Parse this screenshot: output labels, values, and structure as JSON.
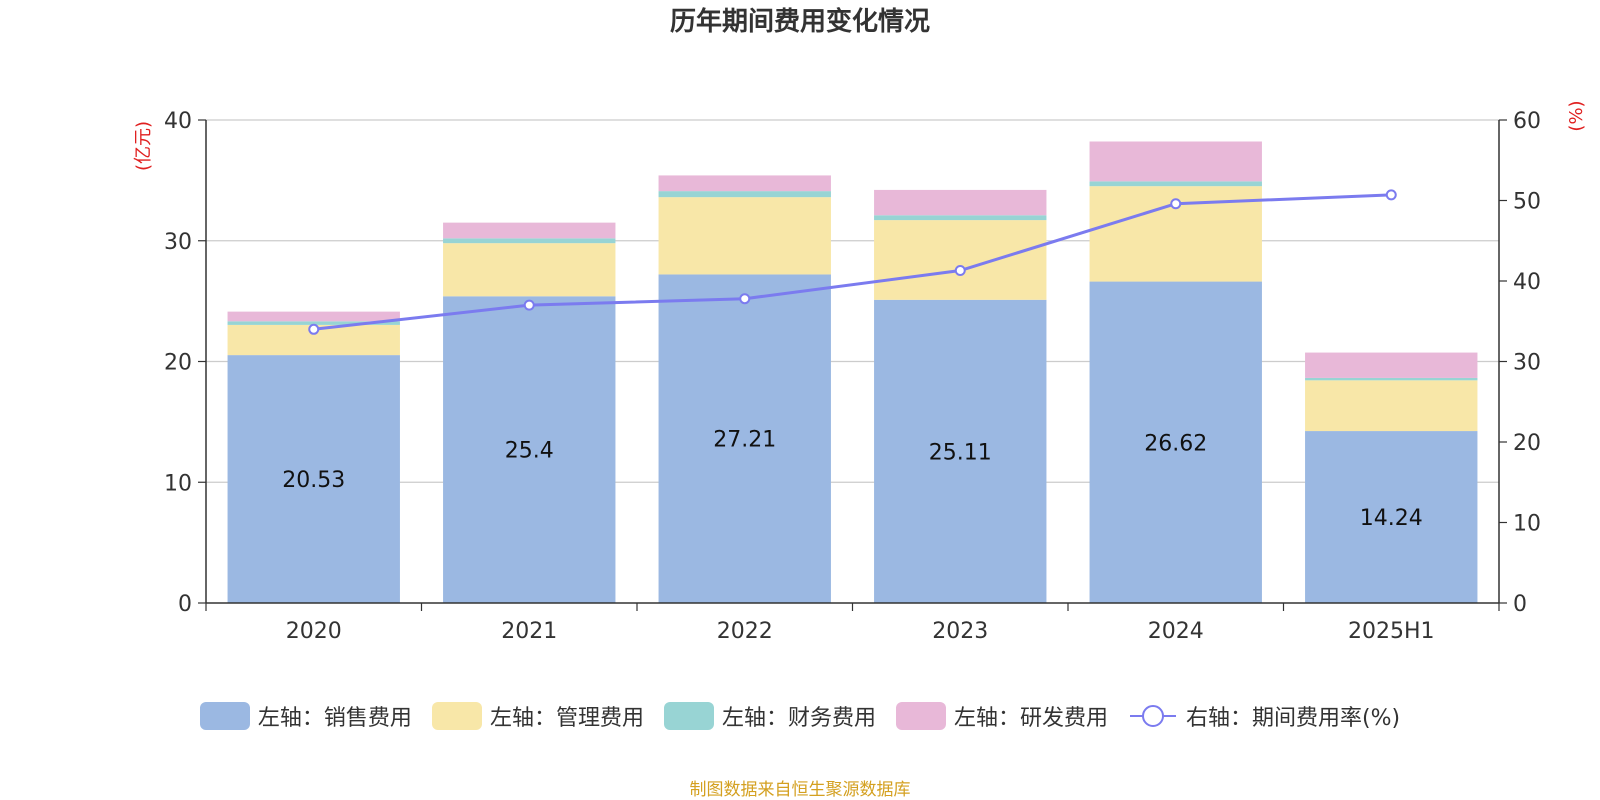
{
  "chart_data": {
    "type": "bar",
    "title": "历年期间费用变化情况",
    "categories": [
      "2020",
      "2021",
      "2022",
      "2023",
      "2024",
      "2025H1"
    ],
    "left_axis": {
      "unit_label": "(亿元)",
      "ylim": [
        0,
        40
      ],
      "ticks": [
        "0",
        "10",
        "20",
        "30",
        "40"
      ]
    },
    "right_axis": {
      "unit_label": "(%)",
      "ylim": [
        0,
        60
      ],
      "ticks": [
        "0",
        "10",
        "20",
        "30",
        "40",
        "50",
        "60"
      ]
    },
    "series": [
      {
        "name": "左轴：销售费用",
        "axis": "left",
        "kind": "bar",
        "color": "#9bb8e2",
        "values": [
          20.53,
          25.4,
          27.21,
          25.11,
          26.62,
          14.24
        ],
        "data_labels": [
          "20.53",
          "25.4",
          "27.21",
          "25.11",
          "26.62",
          "14.24"
        ]
      },
      {
        "name": "左轴：管理费用",
        "axis": "left",
        "kind": "bar",
        "color": "#f8e7a8",
        "values": [
          2.5,
          4.4,
          6.4,
          6.6,
          7.9,
          4.2
        ]
      },
      {
        "name": "左轴：财务费用",
        "axis": "left",
        "kind": "bar",
        "color": "#98d4d4",
        "values": [
          0.3,
          0.4,
          0.5,
          0.4,
          0.4,
          0.2
        ]
      },
      {
        "name": "左轴：研发费用",
        "axis": "left",
        "kind": "bar",
        "color": "#e8b8d8",
        "values": [
          0.8,
          1.3,
          1.3,
          2.1,
          3.3,
          2.1
        ]
      },
      {
        "name": "右轴：期间费用率(%)",
        "axis": "right",
        "kind": "line",
        "color": "#7b7bef",
        "values": [
          34.0,
          37.0,
          37.8,
          41.3,
          49.6,
          50.7
        ]
      }
    ],
    "grid": true,
    "legend_position": "bottom"
  },
  "footer": {
    "source": "制图数据来自恒生聚源数据库"
  }
}
